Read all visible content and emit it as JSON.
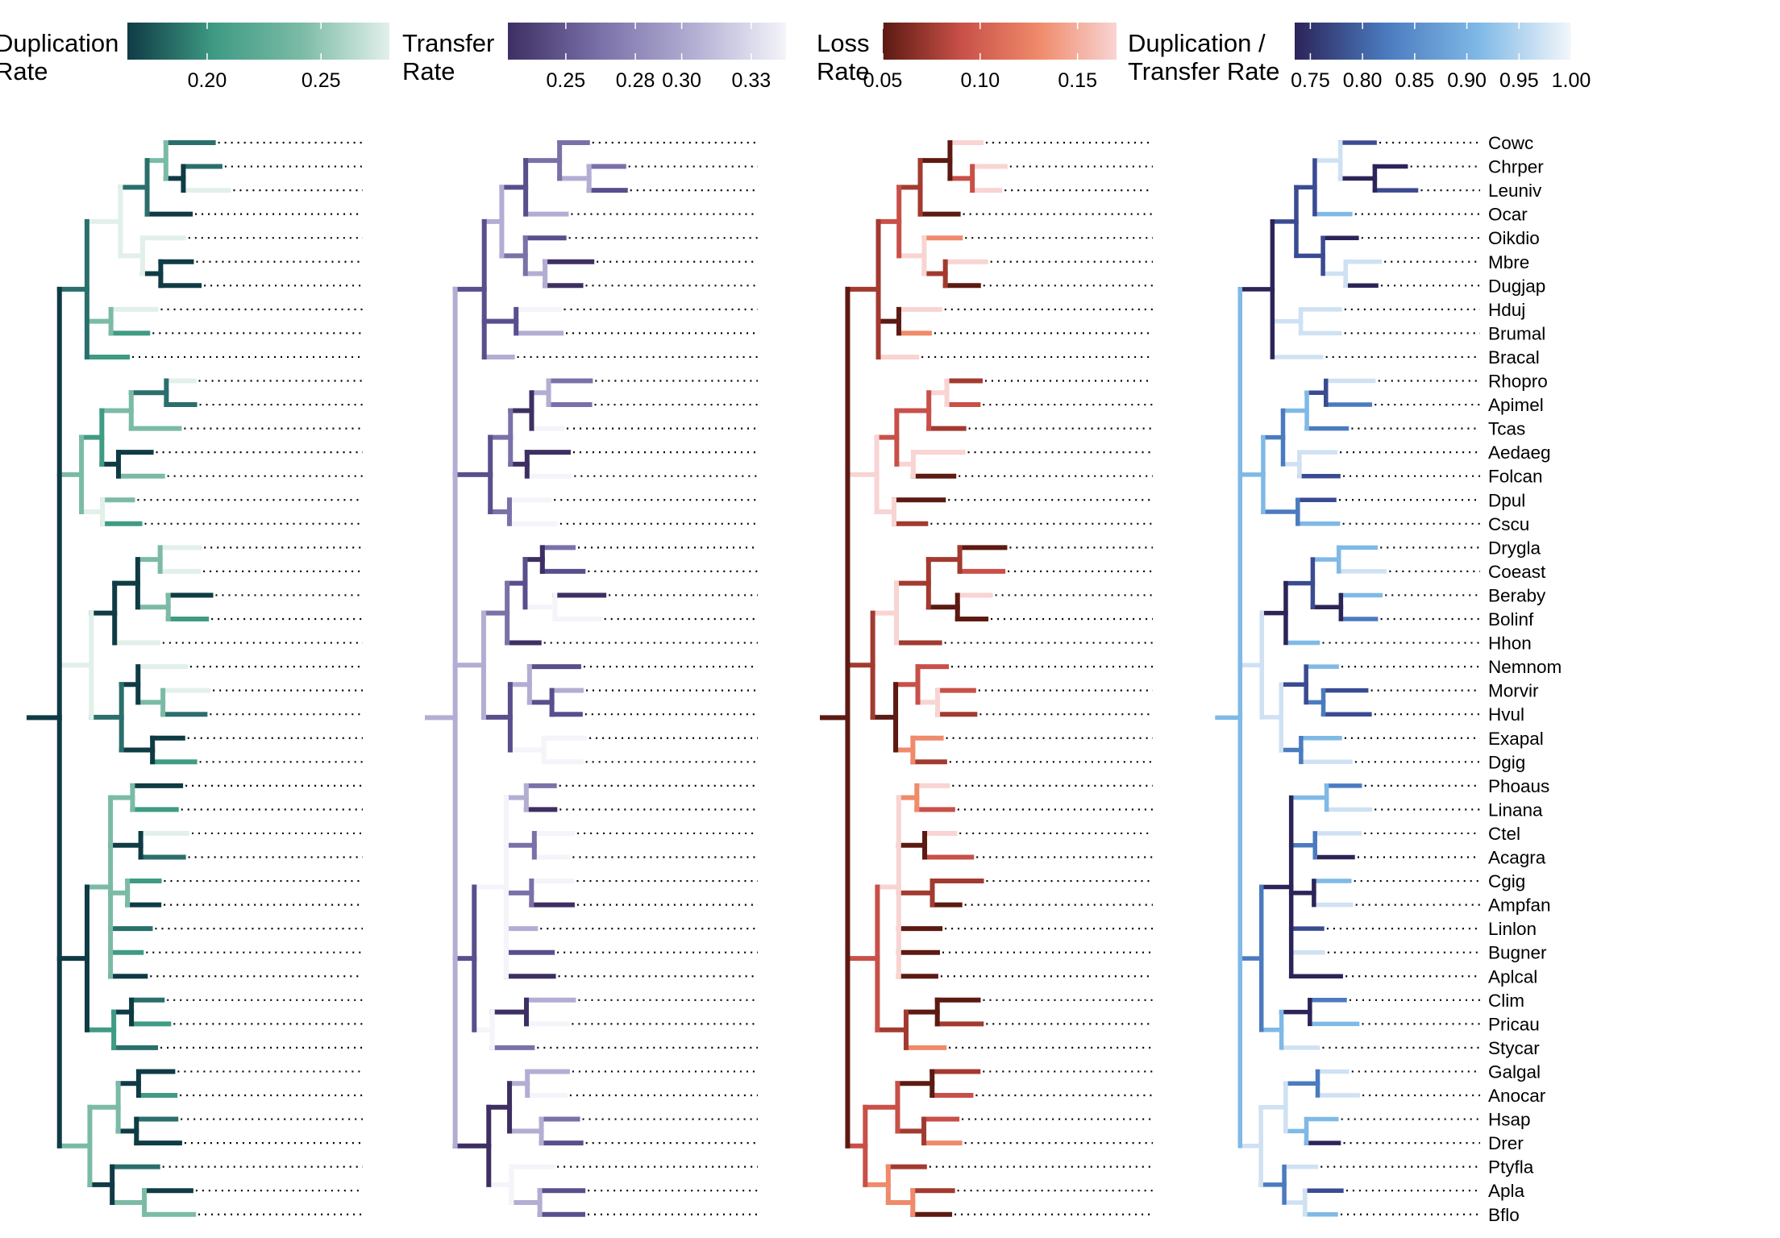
{
  "legends": [
    {
      "title_lines": [
        "Duplication",
        "Rate"
      ],
      "ticks": [
        "0.20",
        "0.25"
      ],
      "tick_values": [
        0.2,
        0.25
      ],
      "range": [
        0.165,
        0.28
      ],
      "colors": [
        "#0f3b45",
        "#3f9b84",
        "#7bbba6",
        "#e2f0ea"
      ]
    },
    {
      "title_lines": [
        "Transfer",
        "Rate"
      ],
      "ticks": [
        "0.25",
        "0.28",
        "0.30",
        "0.33"
      ],
      "tick_values": [
        0.25,
        0.28,
        0.3,
        0.33
      ],
      "range": [
        0.225,
        0.345
      ],
      "colors": [
        "#3e2f63",
        "#7a71a9",
        "#b2aed3",
        "#f4f4fa"
      ]
    },
    {
      "title_lines": [
        "Loss",
        "Rate"
      ],
      "ticks": [
        "0.05",
        "0.10",
        "0.15"
      ],
      "tick_values": [
        0.05,
        0.1,
        0.15
      ],
      "range": [
        0.05,
        0.17
      ],
      "colors": [
        "#5c1a12",
        "#c85048",
        "#ef8a6a",
        "#f8d4d2"
      ]
    },
    {
      "title_lines": [
        "Duplication /",
        "Transfer Rate"
      ],
      "ticks": [
        "0.75",
        "0.80",
        "0.85",
        "0.90",
        "0.95",
        "1.00"
      ],
      "tick_values": [
        0.75,
        0.8,
        0.85,
        0.9,
        0.95,
        1.0
      ],
      "range": [
        0.735,
        1.0
      ],
      "colors": [
        "#2c2459",
        "#4b7bbf",
        "#7fb9e6",
        "#f3f7fb"
      ]
    }
  ],
  "taxa": [
    "Cowc",
    "Chrper",
    "Leuniv",
    "Ocar",
    "Oikdio",
    "Mbre",
    "Dugjap",
    "Hduj",
    "Brumal",
    "Bracal",
    "Rhopro",
    "Apimel",
    "Tcas",
    "Aedaeg",
    "Folcan",
    "Dpul",
    "Cscu",
    "Drygla",
    "Coeast",
    "Beraby",
    "Bolinf",
    "Hhon",
    "Nemnom",
    "Morvir",
    "Hvul",
    "Exapal",
    "Dgig",
    "Phoaus",
    "Linana",
    "Ctel",
    "Acagra",
    "Cgig",
    "Ampfan",
    "Linlon",
    "Bugner",
    "Aplcal",
    "Clim",
    "Pricau",
    "Stycar",
    "Galgal",
    "Anocar",
    "Hsap",
    "Drer",
    "Ptyfla",
    "Apla",
    "Bflo"
  ]
}
